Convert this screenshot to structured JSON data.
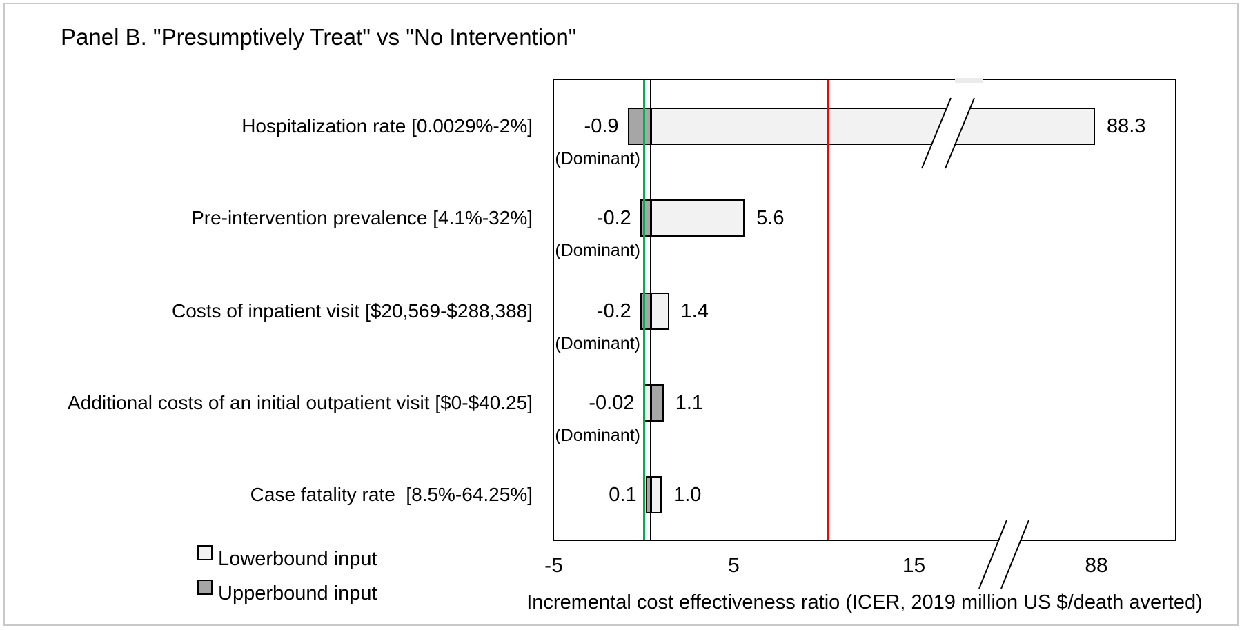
{
  "title": "Panel B. \"Presumptively Treat\" vs \"No Intervention\"",
  "chart_data": {
    "type": "bar",
    "subtype": "tornado-diagram",
    "title": "Panel B. \"Presumptively Treat\" vs \"No Intervention\"",
    "x_axis": {
      "label": "Incremental cost effectiveness ratio (ICER, 2019 million US $/death averted)",
      "ticks": [
        {
          "label": "-5",
          "value": -5
        },
        {
          "label": "5",
          "value": 5
        },
        {
          "label": "15",
          "value": 15
        },
        {
          "label": "88",
          "value": 88
        }
      ],
      "axis_break": "between 15 and 88",
      "visible_linear_range": [
        -5,
        20
      ]
    },
    "rows": [
      {
        "label": "Hospitalization rate [0.0029%-2%]",
        "low": -0.9,
        "high": 88.3,
        "low_label": "-0.9",
        "high_label": "88.3",
        "low_annotation": "(Dominant)",
        "low_from": "upperbound",
        "high_from": "lowerbound",
        "clipped_by_axis_break": true
      },
      {
        "label": "Pre-intervention prevalence [4.1%-32%]",
        "low": -0.2,
        "high": 5.6,
        "low_label": "-0.2",
        "high_label": "5.6",
        "low_annotation": "(Dominant)",
        "low_from": "upperbound",
        "high_from": "lowerbound",
        "clipped_by_axis_break": false
      },
      {
        "label": "Costs of inpatient visit [$20,569-$288,388]",
        "low": -0.2,
        "high": 1.4,
        "low_label": "-0.2",
        "high_label": "1.4",
        "low_annotation": "(Dominant)",
        "low_from": "upperbound",
        "high_from": "lowerbound",
        "clipped_by_axis_break": false
      },
      {
        "label": "Additional costs of an initial outpatient visit [$0-$40.25]",
        "low": -0.02,
        "high": 1.1,
        "low_label": "-0.02",
        "high_label": "1.1",
        "low_annotation": "(Dominant)",
        "low_from": "lowerbound",
        "high_from": "upperbound",
        "clipped_by_axis_break": false
      },
      {
        "label": "Case fatality rate  [8.5%-64.25%]",
        "low": 0.1,
        "high": 1.0,
        "low_label": "0.1",
        "high_label": "1.0",
        "low_annotation": null,
        "low_from": "upperbound",
        "high_from": "lowerbound",
        "clipped_by_axis_break": false
      }
    ],
    "reference_lines": [
      {
        "name": "zero-line",
        "value": 0,
        "color": "#00B050"
      },
      {
        "name": "base-case-icer-line",
        "value": 0.4,
        "color": "#000000"
      },
      {
        "name": "threshold-line",
        "value": 10.2,
        "color": "#FF0000"
      }
    ],
    "legend": [
      {
        "label": "Lowerbound input",
        "color": "#F2F2F2"
      },
      {
        "label": "Upperbound input",
        "color": "#A6A6A6"
      }
    ],
    "colors": {
      "lowerbound": "#F2F2F2",
      "upperbound": "#A6A6A6",
      "bar_border": "#000000"
    }
  }
}
